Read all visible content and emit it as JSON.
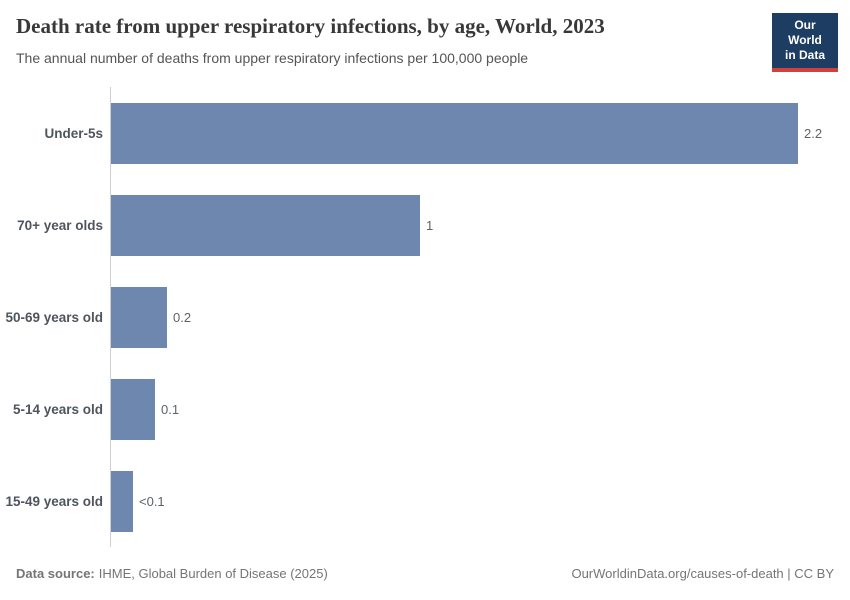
{
  "header": {
    "title": "Death rate from upper respiratory infections, by age, World, 2023",
    "subtitle": "The annual number of deaths from upper respiratory infections per 100,000 people"
  },
  "logo": {
    "line1": "Our World",
    "line2": "in Data",
    "bg_color": "#1d3d63",
    "accent_color": "#d0413e"
  },
  "chart_data": {
    "type": "bar",
    "orientation": "horizontal",
    "title": "Death rate from upper respiratory infections, by age, World, 2023",
    "xlabel": "",
    "ylabel": "",
    "grid": false,
    "xlim": [
      0,
      2.2
    ],
    "categories": [
      "Under-5s",
      "70+ year olds",
      "50-69 years old",
      "5-14 years old",
      "15-49 years old"
    ],
    "values": [
      2.2,
      0.99,
      0.18,
      0.14,
      0.07
    ],
    "value_labels": [
      "2.2",
      "1",
      "0.2",
      "0.1",
      "<0.1"
    ],
    "bar_color": "#6e87ae",
    "axis_line_color": "#cfcfcf"
  },
  "footer": {
    "source_label": "Data source:",
    "source_text": "IHME, Global Burden of Disease (2025)",
    "attribution": "OurWorldinData.org/causes-of-death | CC BY"
  }
}
